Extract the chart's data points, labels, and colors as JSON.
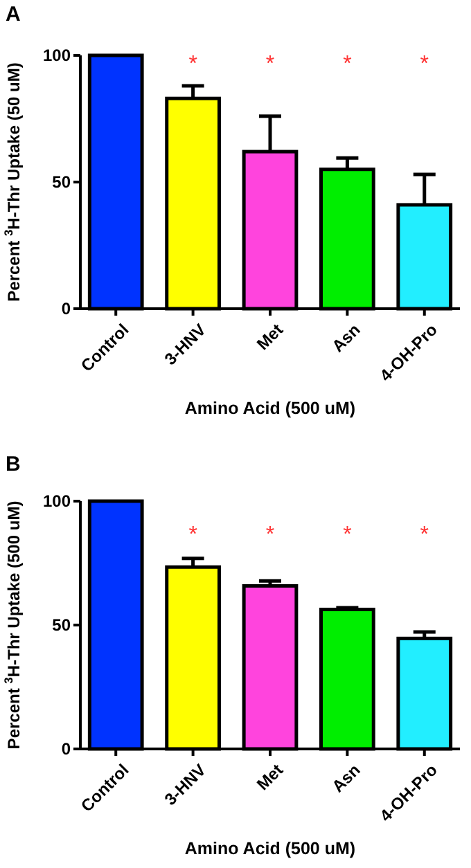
{
  "chart_data": [
    {
      "type": "bar",
      "title": "A",
      "xlabel": "Amino Acid (500 uM)",
      "ylabel": "Percent $^{3}$H-Thr Uptake (50 uM)",
      "categories": [
        "Control",
        "3-HNV",
        "Met",
        "Asn",
        "4-OH-Pro"
      ],
      "values": [
        100,
        83,
        62,
        55,
        41
      ],
      "errors": [
        null,
        5,
        14,
        4.5,
        12
      ],
      "colors": [
        "#0033ff",
        "#ffff00",
        "#ff44dd",
        "#00ee00",
        "#22eeff"
      ],
      "ylim": [
        0,
        100
      ],
      "yticks": [
        0,
        50,
        100
      ],
      "grid": false,
      "annotations": [
        "*",
        "*",
        "*",
        "*"
      ]
    },
    {
      "type": "bar",
      "title": "B",
      "xlabel": "Amino Acid (500 uM)",
      "ylabel": "Percent $^{3}$H-Thr Uptake (500 uM)",
      "categories": [
        "Control",
        "3-HNV",
        "Met",
        "Asn",
        "4-OH-Pro"
      ],
      "values": [
        100,
        73.4,
        65.8,
        56.3,
        44.6
      ],
      "errors": [
        null,
        3.5,
        2,
        0.7,
        2.6
      ],
      "colors": [
        "#0033ff",
        "#ffff00",
        "#ff44dd",
        "#00ee00",
        "#22eeff"
      ],
      "ylim": [
        0,
        100
      ],
      "yticks": [
        0,
        50,
        100
      ],
      "grid": false,
      "annotations": [
        "*",
        "*",
        "*",
        "*"
      ]
    }
  ]
}
